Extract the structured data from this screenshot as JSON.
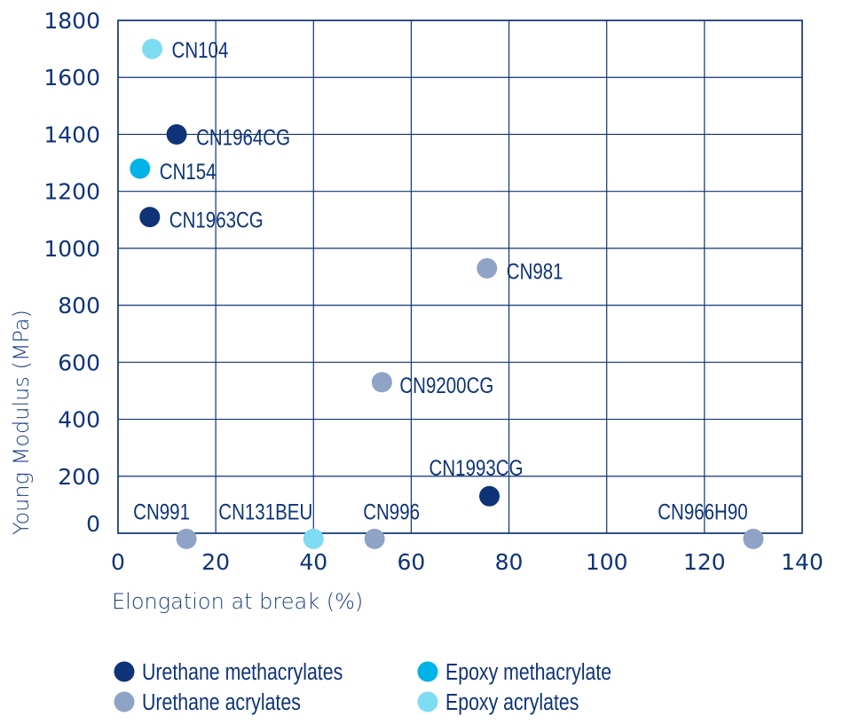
{
  "chart_data": {
    "type": "scatter",
    "title": "",
    "xlabel": "Elongation at break (%)",
    "ylabel": "Young Modulus (MPa)",
    "xlim": [
      0,
      140
    ],
    "ylim": [
      0,
      1800
    ],
    "xticks": [
      0,
      20,
      40,
      60,
      80,
      100,
      120,
      140
    ],
    "yticks": [
      0,
      200,
      400,
      600,
      800,
      1000,
      1200,
      1400,
      1600,
      1800
    ],
    "grid": true,
    "legend_position": "bottom",
    "series": [
      {
        "name": "Urethane methacrylates",
        "color": "#0e3377",
        "points": [
          {
            "label": "CN1964CG",
            "x": 12,
            "y": 1400
          },
          {
            "label": "CN1963CG",
            "x": 6.5,
            "y": 1110
          },
          {
            "label": "CN1993CG",
            "x": 76,
            "y": 130
          }
        ]
      },
      {
        "name": "Urethane acrylates",
        "color": "#8ea3c6",
        "points": [
          {
            "label": "CN981",
            "x": 75.5,
            "y": 930
          },
          {
            "label": "CN9200CG",
            "x": 54,
            "y": 530
          },
          {
            "label": "CN991",
            "x": 14,
            "y": -20
          },
          {
            "label": "CN996",
            "x": 52.5,
            "y": -20
          },
          {
            "label": "CN966H90",
            "x": 130,
            "y": -20
          }
        ]
      },
      {
        "name": "Epoxy methacrylate",
        "color": "#00b3e6",
        "points": [
          {
            "label": "CN154",
            "x": 4.5,
            "y": 1280
          }
        ]
      },
      {
        "name": "Epoxy acrylates",
        "color": "#7ddcf2",
        "points": [
          {
            "label": "CN104",
            "x": 7,
            "y": 1700
          },
          {
            "label": "CN131BEU",
            "x": 40,
            "y": -20
          }
        ]
      }
    ]
  }
}
